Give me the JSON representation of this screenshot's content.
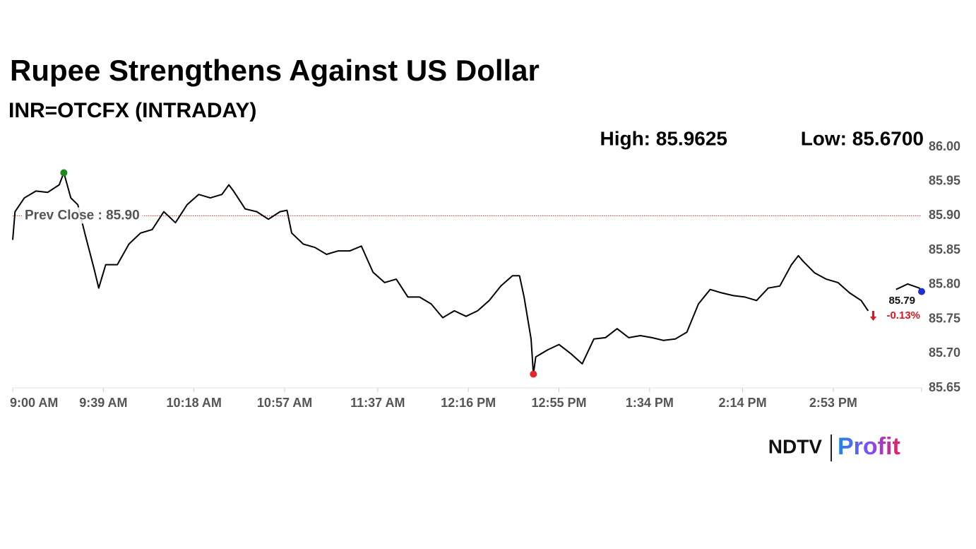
{
  "chart_data": {
    "type": "line",
    "title": "Rupee Strengthens Against US Dollar",
    "subtitle": "INR=OTCFX (INTRADAY)",
    "high_text": "High: 85.9625",
    "low_text": "Low: 85.6700",
    "x": [
      "9:00 AM",
      "9:01 AM",
      "9:05 AM",
      "9:10 AM",
      "9:15 AM",
      "9:20 AM",
      "9:22 AM",
      "9:25 AM",
      "9:28 AM",
      "9:31 AM",
      "9:35 AM",
      "9:37 AM",
      "9:40 AM",
      "9:45 AM",
      "9:50 AM",
      "9:55 AM",
      "10:00 AM",
      "10:05 AM",
      "10:10 AM",
      "10:15 AM",
      "10:20 AM",
      "10:25 AM",
      "10:30 AM",
      "10:33 AM",
      "10:35 AM",
      "10:40 AM",
      "10:45 AM",
      "10:50 AM",
      "10:55 AM",
      "10:58 AM",
      "11:00 AM",
      "11:05 AM",
      "11:10 AM",
      "11:15 AM",
      "11:20 AM",
      "11:25 AM",
      "11:30 AM",
      "11:35 AM",
      "11:40 AM",
      "11:45 AM",
      "11:50 AM",
      "11:55 AM",
      "12:00 PM",
      "12:05 PM",
      "12:10 PM",
      "12:15 PM",
      "12:20 PM",
      "12:25 PM",
      "12:30 PM",
      "12:35 PM",
      "12:38 PM",
      "12:40 PM",
      "12:43 PM",
      "12:44 PM",
      "12:45 PM",
      "12:50 PM",
      "12:55 PM",
      "1:00 PM",
      "1:05 PM",
      "1:10 PM",
      "1:15 PM",
      "1:20 PM",
      "1:25 PM",
      "1:30 PM",
      "1:35 PM",
      "1:40 PM",
      "1:45 PM",
      "1:50 PM",
      "1:55 PM",
      "2:00 PM",
      "2:05 PM",
      "2:10 PM",
      "2:15 PM",
      "2:20 PM",
      "2:25 PM",
      "2:30 PM",
      "2:35 PM",
      "2:38 PM",
      "2:40 PM",
      "2:45 PM",
      "2:50 PM",
      "2:55 PM",
      "3:00 PM",
      "3:05 PM",
      "3:08 PM",
      "3:14 PM",
      "3:20 PM",
      "3:25 PM",
      "3:30 PM",
      "3:31 PM"
    ],
    "series": [
      {
        "name": "INR=OTCFX",
        "color": "#000000",
        "values": [
          85.865,
          85.906,
          85.926,
          85.936,
          85.934,
          85.945,
          85.9625,
          85.926,
          85.916,
          85.875,
          85.823,
          85.795,
          85.829,
          85.829,
          85.859,
          85.875,
          85.88,
          85.906,
          85.89,
          85.916,
          85.931,
          85.926,
          85.931,
          85.945,
          85.936,
          85.91,
          85.906,
          85.895,
          85.906,
          85.908,
          85.875,
          85.859,
          85.854,
          85.844,
          85.849,
          85.849,
          85.856,
          85.818,
          85.803,
          85.808,
          85.782,
          85.782,
          85.772,
          85.752,
          85.762,
          85.754,
          85.762,
          85.777,
          85.798,
          85.813,
          85.813,
          85.782,
          85.721,
          85.67,
          85.695,
          85.705,
          85.713,
          85.7,
          85.685,
          85.721,
          85.723,
          85.736,
          85.723,
          85.726,
          85.723,
          85.719,
          85.721,
          85.731,
          85.772,
          85.793,
          85.788,
          85.784,
          85.782,
          85.777,
          85.795,
          85.798,
          85.829,
          85.842,
          85.834,
          85.817,
          85.808,
          85.803,
          85.788,
          85.777,
          85.762,
          null,
          85.793,
          85.801,
          85.795,
          85.79
        ]
      }
    ],
    "high_color": "#1a8a1a",
    "low_color": "#e8262a",
    "last_color": "#1f2fd0",
    "last_price": "85.79",
    "change": "-0.13%",
    "change_color": "#e0161d",
    "prev_close": {
      "value": 85.9,
      "label": "Prev Close : 85.90",
      "color": "#c0392b"
    },
    "xlim": [
      "9:00 AM",
      "3:31 PM"
    ],
    "xticks": [
      "9:00 AM",
      "9:39 AM",
      "10:18 AM",
      "10:57 AM",
      "11:37 AM",
      "12:16 PM",
      "12:55 PM",
      "1:34 PM",
      "2:14 PM",
      "2:53 PM"
    ],
    "ylim": [
      85.65,
      86.0
    ],
    "yticks": [
      {
        "value": 85.65,
        "label": "85.65"
      },
      {
        "value": 85.7,
        "label": "85.70"
      },
      {
        "value": 85.75,
        "label": "85.75"
      },
      {
        "value": 85.8,
        "label": "85.80"
      },
      {
        "value": 85.85,
        "label": "85.85"
      },
      {
        "value": 85.9,
        "label": "85.90"
      },
      {
        "value": 85.95,
        "label": "85.95"
      },
      {
        "value": 86.0,
        "label": "86.00"
      }
    ],
    "grid": false
  },
  "branding": {
    "left": "NDTV",
    "right": "Profit"
  }
}
